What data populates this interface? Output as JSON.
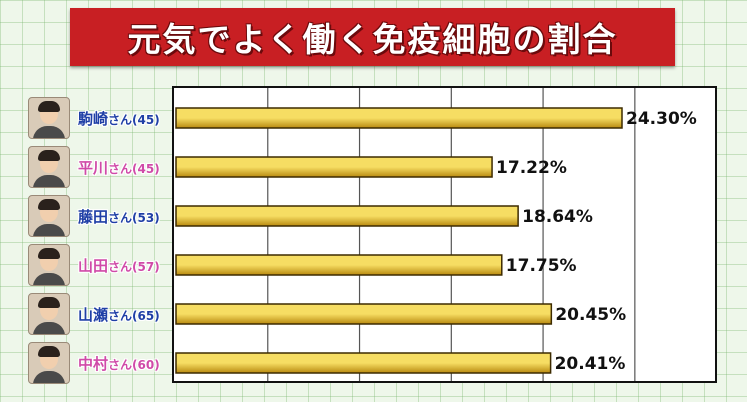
{
  "title": "元気でよく働く免疫細胞の割合",
  "colors": {
    "banner": "#c81f23",
    "bar_fill_top": "#f6dd63",
    "bar_fill_bottom": "#b98a10",
    "bar_outline": "#3d2b00",
    "name_blue": "#1f3fa6",
    "name_pink": "#d04aa8",
    "grid_background": "#eef7ea"
  },
  "rows": [
    {
      "name": "駒崎",
      "suffix": "さん(45)",
      "name_color": "#1f3fa6",
      "avatar_icon": "person-photo-icon"
    },
    {
      "name": "平川",
      "suffix": "さん(45)",
      "name_color": "#d04aa8",
      "avatar_icon": "person-photo-icon"
    },
    {
      "name": "藤田",
      "suffix": "さん(53)",
      "name_color": "#1f3fa6",
      "avatar_icon": "person-photo-icon"
    },
    {
      "name": "山田",
      "suffix": "さん(57)",
      "name_color": "#d04aa8",
      "avatar_icon": "person-photo-icon"
    },
    {
      "name": "山瀬",
      "suffix": "さん(65)",
      "name_color": "#1f3fa6",
      "avatar_icon": "person-photo-icon"
    },
    {
      "name": "中村",
      "suffix": "さん(60)",
      "name_color": "#d04aa8",
      "avatar_icon": "person-photo-icon"
    }
  ],
  "chart_data": {
    "type": "bar",
    "orientation": "horizontal",
    "title": "元気でよく働く免疫細胞の割合",
    "categories": [
      "駒崎さん(45)",
      "平川さん(45)",
      "藤田さん(53)",
      "山田さん(57)",
      "山瀬さん(65)",
      "中村さん(60)"
    ],
    "values": [
      24.3,
      17.22,
      18.64,
      17.75,
      20.45,
      20.41
    ],
    "value_labels": [
      "24.30%",
      "17.22%",
      "18.64%",
      "17.75%",
      "20.45%",
      "20.41%"
    ],
    "xlim": [
      0,
      25
    ],
    "grid": true,
    "legend": "none"
  }
}
